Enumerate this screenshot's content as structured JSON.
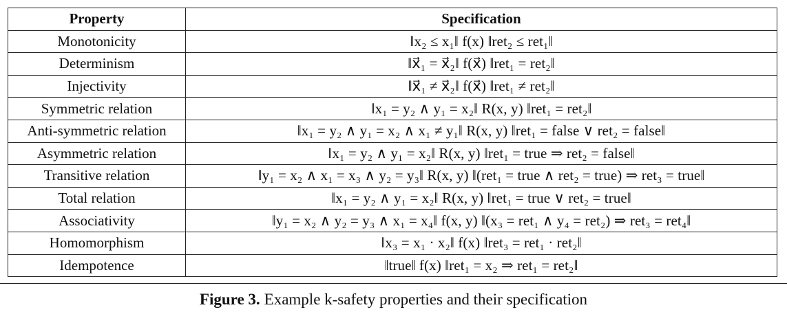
{
  "table": {
    "headers": {
      "property": "Property",
      "specification": "Specification"
    },
    "rows": [
      {
        "property": "Monotonicity",
        "spec": "‖x₂ ≤ x₁‖ f(x) ‖ret₂ ≤ ret₁‖"
      },
      {
        "property": "Determinism",
        "spec": "‖x⃗₁ = x⃗₂‖ f(x⃗) ‖ret₁ = ret₂‖"
      },
      {
        "property": "Injectivity",
        "spec": "‖x⃗₁ ≠ x⃗₂‖ f(x⃗) ‖ret₁ ≠ ret₂‖"
      },
      {
        "property": "Symmetric relation",
        "spec": "‖x₁ = y₂ ∧ y₁ = x₂‖ R(x, y) ‖ret₁ = ret₂‖"
      },
      {
        "property": "Anti-symmetric relation",
        "spec": "‖x₁ = y₂ ∧ y₁ = x₂ ∧ x₁ ≠ y₁‖ R(x, y) ‖ret₁ = false ∨ ret₂ = false‖"
      },
      {
        "property": "Asymmetric relation",
        "spec": "‖x₁ = y₂ ∧ y₁ = x₂‖ R(x, y) ‖ret₁ = true ⇒ ret₂ = false‖"
      },
      {
        "property": "Transitive relation",
        "spec": "‖y₁ = x₂ ∧ x₁ = x₃ ∧ y₂ = y₃‖ R(x, y) ‖(ret₁ = true ∧ ret₂ = true) ⇒ ret₃ = true‖"
      },
      {
        "property": "Total relation",
        "spec": "‖x₁ = y₂ ∧ y₁ = x₂‖ R(x, y) ‖ret₁ = true ∨ ret₂ = true‖"
      },
      {
        "property": "Associativity",
        "spec": "‖y₁ = x₂ ∧ y₂ = y₃ ∧ x₁ = x₄‖ f(x, y) ‖(x₃ = ret₁ ∧ y₄ = ret₂) ⇒ ret₃ = ret₄‖"
      },
      {
        "property": "Homomorphism",
        "spec": "‖x₃ = x₁ · x₂‖ f(x) ‖ret₃ = ret₁ · ret₂‖"
      },
      {
        "property": "Idempotence",
        "spec": "‖true‖ f(x) ‖ret₁ = x₂ ⇒ ret₁ = ret₂‖"
      }
    ]
  },
  "caption": {
    "label": "Figure 3.",
    "text": "Example k-safety properties and their specification"
  }
}
